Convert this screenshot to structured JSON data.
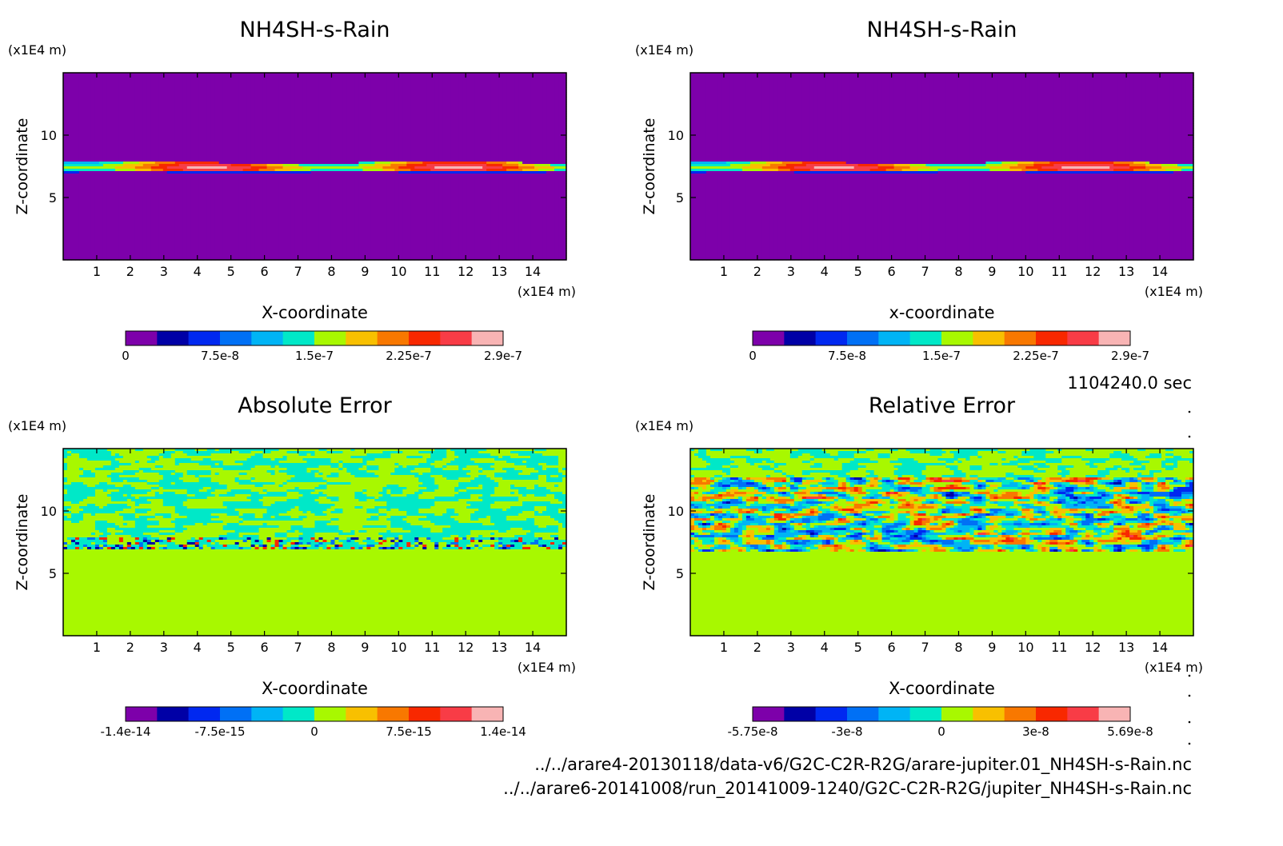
{
  "figure": {
    "time_label": "1104240.0 sec",
    "files": [
      "../../arare4-20130118/data-v6/G2C-C2R-R2G/arare-jupiter.01_NH4SH-s-Rain.nc",
      "../../arare6-20141008/run_20141009-1240/G2C-C2R-R2G/jupiter_NH4SH-s-Rain.nc"
    ]
  },
  "chart_data": [
    {
      "type": "heatmap",
      "title": "NH4SH-s-Rain",
      "xlabel": "X-coordinate",
      "ylabel": "Z-coordinate",
      "x_unit": "(x1E4 m)",
      "y_unit": "(x1E4 m)",
      "xlim": [
        0,
        15
      ],
      "ylim": [
        0,
        15
      ],
      "x_ticks": [
        1,
        2,
        3,
        4,
        5,
        6,
        7,
        8,
        9,
        10,
        11,
        12,
        13,
        14
      ],
      "y_ticks": [
        5,
        10
      ],
      "pattern": "cloud_layer",
      "layer_z": [
        7,
        7.8
      ],
      "colorbar": {
        "colors": [
          "#7d00aa",
          "#0000a6",
          "#0028f0",
          "#0070f5",
          "#00b4f5",
          "#00e8c8",
          "#a8f800",
          "#f8c000",
          "#f87800",
          "#f82800",
          "#f83c46",
          "#f8b4b4"
        ],
        "labels": [
          "0",
          "7.5e-8",
          "1.5e-7",
          "2.25e-7",
          "2.9e-7"
        ]
      }
    },
    {
      "type": "heatmap",
      "title": "NH4SH-s-Rain",
      "xlabel": "x-coordinate",
      "ylabel": "Z-coordinate",
      "x_unit": "(x1E4 m)",
      "y_unit": "(x1E4 m)",
      "xlim": [
        0,
        15
      ],
      "ylim": [
        0,
        15
      ],
      "x_ticks": [
        1,
        2,
        3,
        4,
        5,
        6,
        7,
        8,
        9,
        10,
        11,
        12,
        13,
        14
      ],
      "y_ticks": [
        5,
        10
      ],
      "pattern": "cloud_layer",
      "layer_z": [
        7,
        7.8
      ],
      "colorbar": {
        "colors": [
          "#7d00aa",
          "#0000a6",
          "#0028f0",
          "#0070f5",
          "#00b4f5",
          "#00e8c8",
          "#a8f800",
          "#f8c000",
          "#f87800",
          "#f82800",
          "#f83c46",
          "#f8b4b4"
        ],
        "labels": [
          "0",
          "7.5e-8",
          "1.5e-7",
          "2.25e-7",
          "2.9e-7"
        ]
      }
    },
    {
      "type": "heatmap",
      "title": "Absolute Error",
      "xlabel": "X-coordinate",
      "ylabel": "Z-coordinate",
      "x_unit": "(x1E4 m)",
      "y_unit": "(x1E4 m)",
      "xlim": [
        0,
        15
      ],
      "ylim": [
        0,
        15
      ],
      "x_ticks": [
        1,
        2,
        3,
        4,
        5,
        6,
        7,
        8,
        9,
        10,
        11,
        12,
        13,
        14
      ],
      "y_ticks": [
        5,
        10
      ],
      "pattern": "absolute_noise",
      "noise_z": [
        7,
        15
      ],
      "colorbar": {
        "colors": [
          "#7d00aa",
          "#0000a6",
          "#0028f0",
          "#0070f5",
          "#00b4f5",
          "#00e8c8",
          "#a8f800",
          "#f8c000",
          "#f87800",
          "#f82800",
          "#f83c46",
          "#f8b4b4"
        ],
        "labels": [
          "-1.4e-14",
          "-7.5e-15",
          "0",
          "7.5e-15",
          "1.4e-14"
        ]
      }
    },
    {
      "type": "heatmap",
      "title": "Relative Error",
      "xlabel": "X-coordinate",
      "ylabel": "Z-coordinate",
      "x_unit": "(x1E4 m)",
      "y_unit": "(x1E4 m)",
      "xlim": [
        0,
        15
      ],
      "ylim": [
        0,
        15
      ],
      "x_ticks": [
        1,
        2,
        3,
        4,
        5,
        6,
        7,
        8,
        9,
        10,
        11,
        12,
        13,
        14
      ],
      "y_ticks": [
        5,
        10
      ],
      "pattern": "relative_noise",
      "noise_z": [
        6.8,
        12.6
      ],
      "colorbar": {
        "colors": [
          "#7d00aa",
          "#0000a6",
          "#0028f0",
          "#0070f5",
          "#00b4f5",
          "#00e8c8",
          "#a8f800",
          "#f8c000",
          "#f87800",
          "#f82800",
          "#f83c46",
          "#f8b4b4"
        ],
        "labels": [
          "-5.75e-8",
          "-3e-8",
          "0",
          "3e-8",
          "5.69e-8"
        ]
      }
    }
  ]
}
